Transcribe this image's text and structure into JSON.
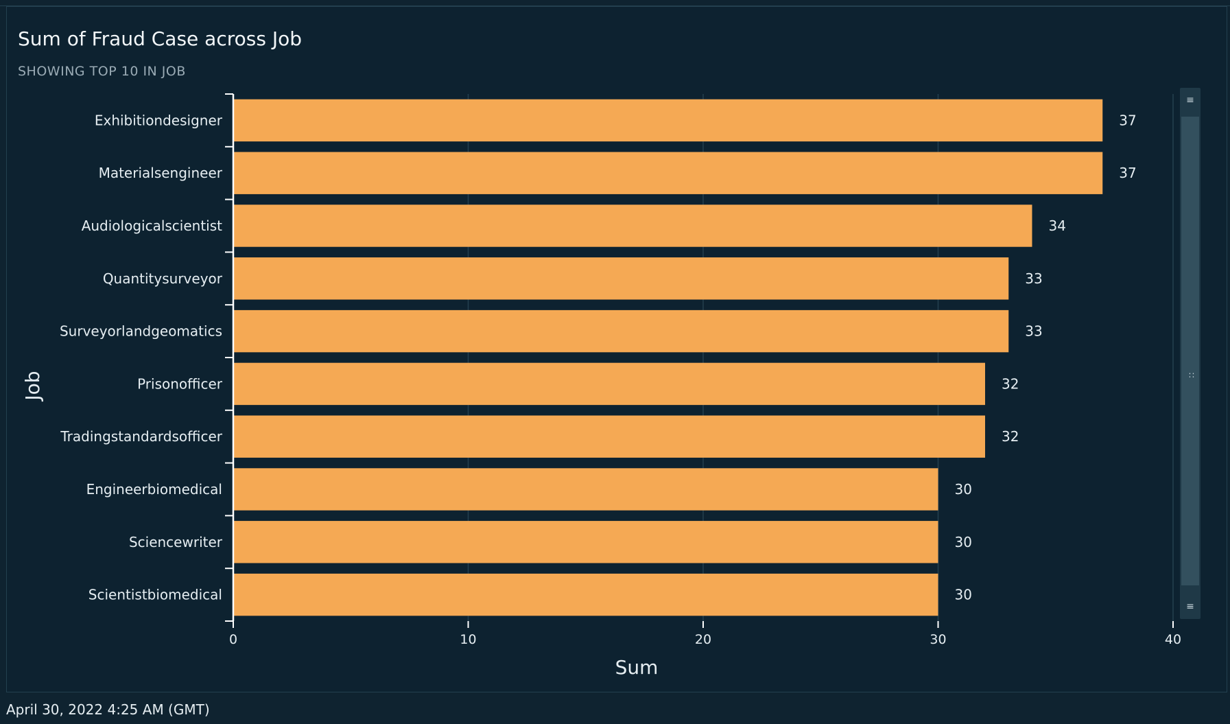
{
  "visual": {
    "title": "Sum of Fraud Case across Job",
    "subtitle": "SHOWING TOP 10 IN JOB"
  },
  "footer": {
    "timestamp": "April 30, 2022 4:25 AM (GMT)"
  },
  "colors": {
    "bar": "#f5a954",
    "background": "#0d2230",
    "gridline": "#243f4e",
    "text": "#e6eef2"
  },
  "scrollbar": {
    "top_icon": "drag-handle-icon",
    "bottom_icon": "drag-handle-icon"
  },
  "chart_data": {
    "type": "bar",
    "orientation": "horizontal",
    "categories": [
      "Exhibitiondesigner",
      "Materialsengineer",
      "Audiologicalscientist",
      "Quantitysurveyor",
      "Surveyorlandgeomatics",
      "Prisonofficer",
      "Tradingstandardsofficer",
      "Engineerbiomedical",
      "Sciencewriter",
      "Scientistbiomedical"
    ],
    "values": [
      37,
      37,
      34,
      33,
      33,
      32,
      32,
      30,
      30,
      30
    ],
    "data_labels": [
      "37",
      "37",
      "34",
      "33",
      "33",
      "32",
      "32",
      "30",
      "30",
      "30"
    ],
    "xlabel": "Sum",
    "ylabel": "Job",
    "xlim": [
      0,
      40
    ],
    "xticks": [
      0,
      10,
      20,
      30,
      40
    ],
    "xtick_labels": [
      "0",
      "10",
      "20",
      "30",
      "40"
    ],
    "grid": true
  }
}
